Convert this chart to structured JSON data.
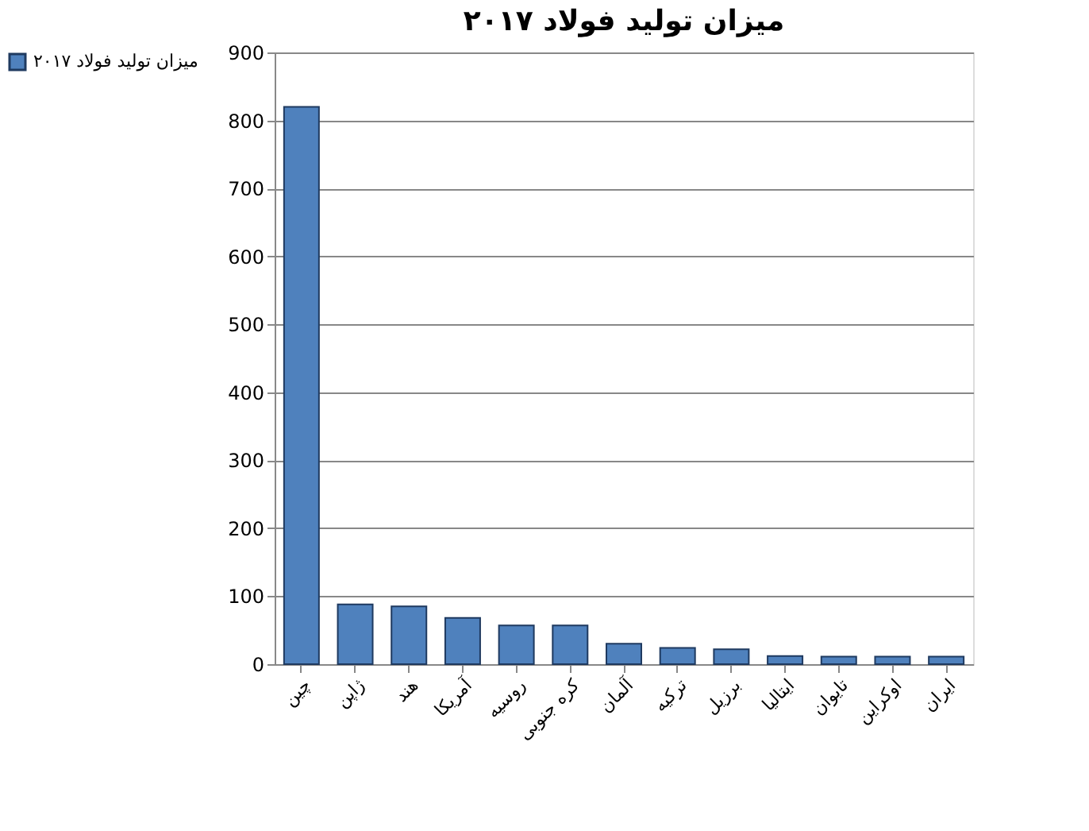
{
  "chart_data": {
    "type": "bar",
    "title": "میزان تولید فولاد ۲۰۱۷",
    "categories": [
      "چین",
      "ژاپن",
      "هند",
      "آمریکا",
      "روسیه",
      "کره جنوبی",
      "آلمان",
      "ترکیه",
      "برزیل",
      "ایتالیا",
      "تایوان",
      "اوکراین",
      "ایران"
    ],
    "series": [
      {
        "name": "میزان تولید فولاد ۲۰۱۷",
        "color": "#4f81bd",
        "values": [
          820,
          88,
          85,
          68,
          57,
          57,
          30,
          24,
          22,
          12,
          11,
          11,
          11
        ]
      }
    ],
    "ylim": [
      0,
      900
    ],
    "yticks": [
      0,
      100,
      200,
      300,
      400,
      500,
      600,
      700,
      800,
      900
    ],
    "grid": "y",
    "legend": "left"
  }
}
